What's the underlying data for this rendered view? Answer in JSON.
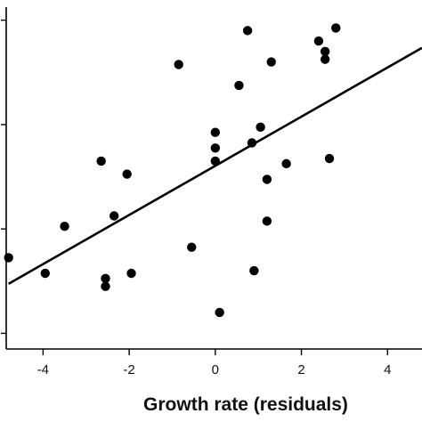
{
  "chart_data": {
    "type": "scatter",
    "title": "",
    "xlabel": "Growth rate (residuals)",
    "ylabel": "",
    "xlim": [
      -5,
      4.8
    ],
    "ylim": [
      -2.3,
      4.25
    ],
    "x_ticks": [
      -4,
      -2,
      0,
      2,
      4
    ],
    "x_tick_labels": [
      "-4",
      "-2",
      "0",
      "2",
      "4"
    ],
    "y_ticks": [
      -2,
      0,
      2,
      4
    ],
    "y_tick_labels": [
      "",
      "",
      "",
      ""
    ],
    "grid": false,
    "legend": "none",
    "marker_color": "#000000",
    "line_color": "#000000",
    "points": [
      {
        "x": -4.8,
        "y": -0.55
      },
      {
        "x": -3.95,
        "y": -0.85
      },
      {
        "x": -3.5,
        "y": 0.05
      },
      {
        "x": -2.65,
        "y": 1.3
      },
      {
        "x": -2.55,
        "y": -0.95
      },
      {
        "x": -2.55,
        "y": -1.1
      },
      {
        "x": -2.35,
        "y": 0.25
      },
      {
        "x": -2.05,
        "y": 1.05
      },
      {
        "x": -1.95,
        "y": -0.85
      },
      {
        "x": -0.85,
        "y": 3.15
      },
      {
        "x": -0.55,
        "y": -0.35
      },
      {
        "x": 0.0,
        "y": 1.85
      },
      {
        "x": 0.0,
        "y": 1.55
      },
      {
        "x": 0.0,
        "y": 1.3
      },
      {
        "x": 0.1,
        "y": -1.6
      },
      {
        "x": 0.55,
        "y": 2.75
      },
      {
        "x": 0.75,
        "y": 3.8
      },
      {
        "x": 0.85,
        "y": 1.65
      },
      {
        "x": 0.9,
        "y": -0.8
      },
      {
        "x": 1.05,
        "y": 1.95
      },
      {
        "x": 1.2,
        "y": 0.15
      },
      {
        "x": 1.2,
        "y": 0.95
      },
      {
        "x": 1.3,
        "y": 3.2
      },
      {
        "x": 1.65,
        "y": 1.25
      },
      {
        "x": 2.4,
        "y": 3.6
      },
      {
        "x": 2.55,
        "y": 3.4
      },
      {
        "x": 2.55,
        "y": 3.25
      },
      {
        "x": 2.65,
        "y": 1.35
      },
      {
        "x": 2.8,
        "y": 3.85
      }
    ],
    "fit_line": {
      "x": [
        -4.8,
        4.8
      ],
      "y": [
        -1.05,
        3.47
      ]
    }
  }
}
